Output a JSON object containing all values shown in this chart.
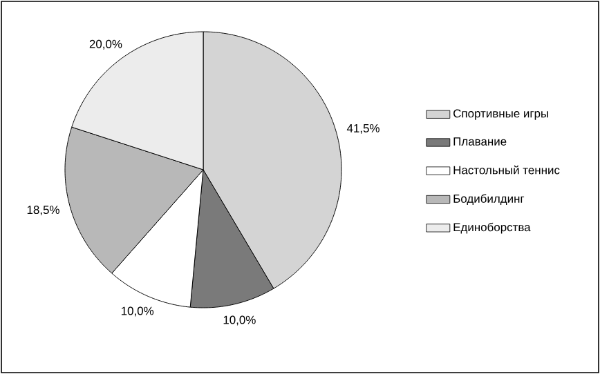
{
  "chart_data": {
    "type": "pie",
    "categories": [
      "Спортивные игры",
      "Плавание",
      "Настольный теннис",
      "Бодибилдинг",
      "Единоборства"
    ],
    "values": [
      41.5,
      10.0,
      10.0,
      18.5,
      20.0
    ],
    "value_labels": [
      "41,5%",
      "10,0%",
      "10,0%",
      "18,5%",
      "20,0%"
    ],
    "colors": [
      "#d4d4d4",
      "#7a7a7a",
      "#ffffff",
      "#b8b8b8",
      "#ececec"
    ],
    "legend": "right"
  }
}
